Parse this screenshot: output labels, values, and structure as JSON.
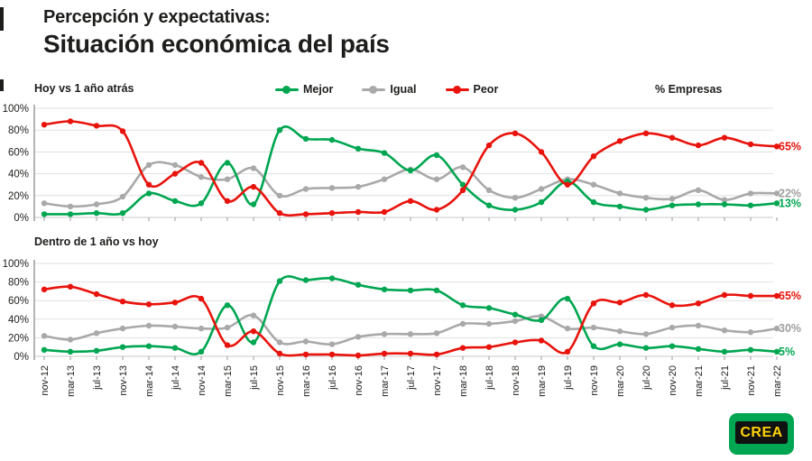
{
  "header": {
    "kicker": "Percepción y expectativas:",
    "title": "Situación económica del país"
  },
  "legend": {
    "items": [
      {
        "label": "Mejor",
        "color": "#00a651"
      },
      {
        "label": "Igual",
        "color": "#a9a9a9"
      },
      {
        "label": "Peor",
        "color": "#e8130c"
      }
    ],
    "right_label": "% Empresas"
  },
  "logo": {
    "text": "CREA",
    "bg_color": "#00a651",
    "band_color": "#111111",
    "text_color": "#ffd20a"
  },
  "chart_data": [
    {
      "type": "line",
      "title": "Hoy vs 1 año atrás",
      "ylabel": "% Empresas",
      "ylim": [
        0,
        100
      ],
      "yticks": [
        "0%",
        "20%",
        "40%",
        "60%",
        "80%",
        "100%"
      ],
      "grid": true,
      "legend_position": "top-center",
      "x": [
        "nov-12",
        "mar-13",
        "jul-13",
        "nov-13",
        "mar-14",
        "jul-14",
        "nov-14",
        "mar-15",
        "jul-15",
        "nov-15",
        "mar-16",
        "jul-16",
        "nov-16",
        "mar-17",
        "jul-17",
        "nov-17",
        "mar-18",
        "jul-18",
        "nov-18",
        "mar-19",
        "jul-19",
        "nov-19",
        "mar-20",
        "jul-20",
        "nov-20",
        "mar-21",
        "jul-21",
        "nov-21",
        "mar-22"
      ],
      "series": [
        {
          "name": "Mejor",
          "color": "#00a651",
          "values": [
            3,
            3,
            4,
            4,
            22,
            15,
            13,
            50,
            12,
            80,
            72,
            71,
            63,
            59,
            43,
            57,
            30,
            11,
            7,
            14,
            33,
            14,
            10,
            7,
            11,
            12,
            12,
            11,
            13
          ]
        },
        {
          "name": "Igual",
          "color": "#a9a9a9",
          "values": [
            13,
            10,
            12,
            19,
            48,
            48,
            37,
            35,
            45,
            20,
            26,
            27,
            28,
            35,
            44,
            35,
            46,
            25,
            18,
            26,
            35,
            30,
            22,
            18,
            17,
            25,
            16,
            22,
            22
          ]
        },
        {
          "name": "Peor",
          "color": "#e8130c",
          "values": [
            85,
            88,
            84,
            79,
            30,
            40,
            50,
            15,
            28,
            4,
            3,
            4,
            5,
            5,
            15,
            7,
            25,
            66,
            77,
            60,
            30,
            56,
            70,
            77,
            73,
            66,
            73,
            67,
            65
          ]
        }
      ],
      "end_labels": [
        {
          "text": "65%",
          "value": 65,
          "color": "#e8130c"
        },
        {
          "text": "22%",
          "value": 22,
          "color": "#9e9e9e"
        },
        {
          "text": "13%",
          "value": 13,
          "color": "#00a651"
        }
      ]
    },
    {
      "type": "line",
      "title": "Dentro de 1 año vs hoy",
      "ylabel": "% Empresas",
      "ylim": [
        0,
        100
      ],
      "yticks": [
        "0%",
        "20%",
        "40%",
        "60%",
        "80%",
        "100%"
      ],
      "grid": true,
      "x": [
        "nov-12",
        "mar-13",
        "jul-13",
        "nov-13",
        "mar-14",
        "jul-14",
        "nov-14",
        "mar-15",
        "jul-15",
        "nov-15",
        "mar-16",
        "jul-16",
        "nov-16",
        "mar-17",
        "jul-17",
        "nov-17",
        "mar-18",
        "jul-18",
        "nov-18",
        "mar-19",
        "jul-19",
        "nov-19",
        "mar-20",
        "jul-20",
        "nov-20",
        "mar-21",
        "jul-21",
        "nov-21",
        "mar-22"
      ],
      "series": [
        {
          "name": "Mejor",
          "color": "#00a651",
          "values": [
            7,
            5,
            6,
            10,
            11,
            9,
            5,
            55,
            15,
            81,
            82,
            84,
            77,
            72,
            71,
            71,
            55,
            52,
            45,
            39,
            62,
            11,
            13,
            9,
            11,
            8,
            5,
            7,
            5
          ]
        },
        {
          "name": "Igual",
          "color": "#a9a9a9",
          "values": [
            22,
            18,
            25,
            30,
            33,
            32,
            30,
            31,
            44,
            15,
            16,
            13,
            21,
            24,
            24,
            25,
            35,
            35,
            38,
            43,
            30,
            31,
            27,
            24,
            31,
            33,
            28,
            26,
            30
          ]
        },
        {
          "name": "Peor",
          "color": "#e8130c",
          "values": [
            72,
            75,
            67,
            59,
            56,
            58,
            62,
            12,
            27,
            3,
            2,
            2,
            1,
            3,
            3,
            2,
            9,
            10,
            15,
            17,
            5,
            57,
            58,
            66,
            55,
            57,
            66,
            65,
            65
          ]
        }
      ],
      "end_labels": [
        {
          "text": "65%",
          "value": 65,
          "color": "#e8130c"
        },
        {
          "text": "30%",
          "value": 30,
          "color": "#9e9e9e"
        },
        {
          "text": "5%",
          "value": 5,
          "color": "#00a651"
        }
      ]
    }
  ]
}
